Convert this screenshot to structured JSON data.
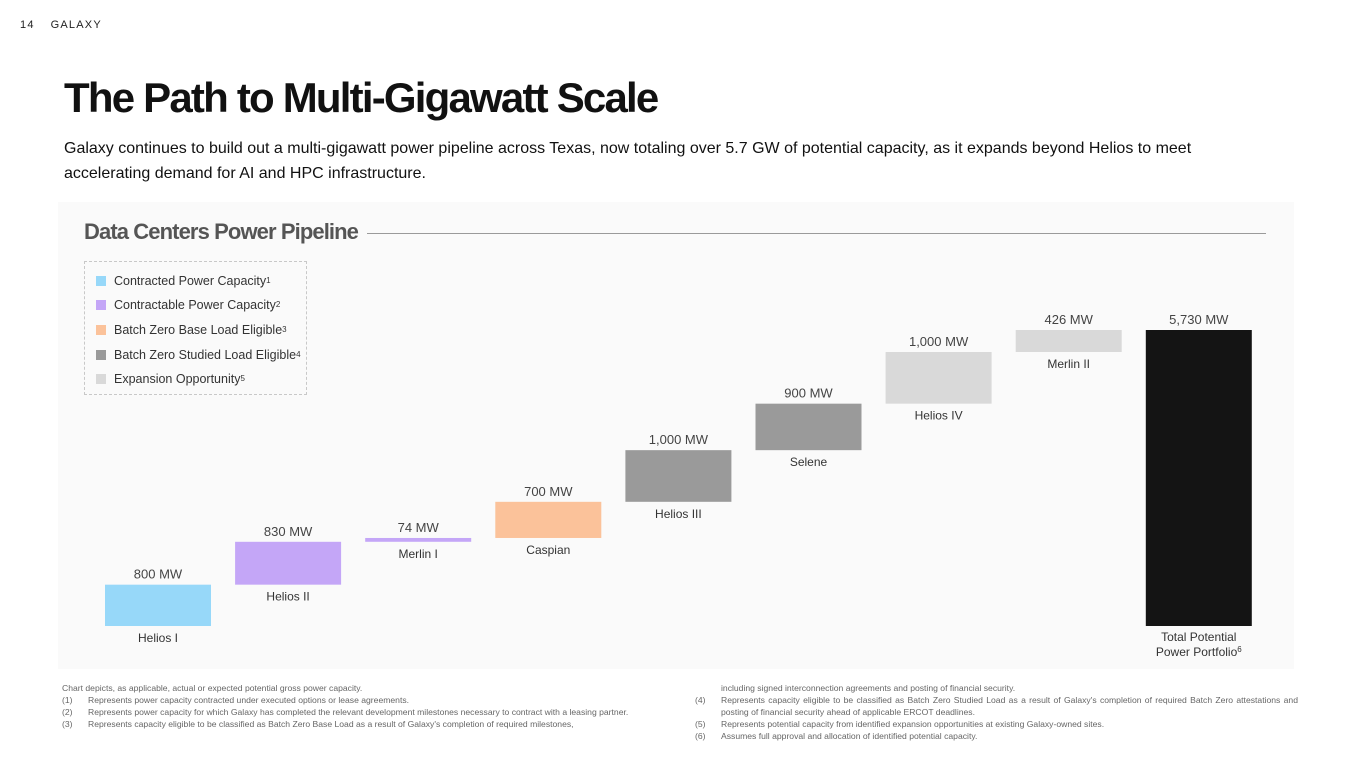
{
  "header": {
    "page_number": "14",
    "brand": "GALAXY"
  },
  "title": "The Path to Multi-Gigawatt Scale",
  "subtitle": "Galaxy continues to build out a multi-gigawatt power pipeline across Texas, now totaling over 5.7 GW of potential capacity, as it expands beyond Helios to meet accelerating demand for AI and HPC infrastructure.",
  "panel": {
    "title": "Data Centers Power Pipeline"
  },
  "legend": [
    {
      "label": "Contracted Power Capacity",
      "sup": "1",
      "color": "#97d8f9"
    },
    {
      "label": "Contractable Power Capacity",
      "sup": "2",
      "color": "#c4a6f7"
    },
    {
      "label": "Batch Zero Base Load Eligible",
      "sup": "3",
      "color": "#fbc29a"
    },
    {
      "label": "Batch Zero Studied Load Eligible",
      "sup": "4",
      "color": "#9a9a9a"
    },
    {
      "label": "Expansion Opportunity",
      "sup": "5",
      "color": "#d9d9d9"
    }
  ],
  "chart_data": {
    "type": "bar",
    "subtype": "waterfall",
    "title": "Data Centers Power Pipeline",
    "unit": "MW",
    "categories": [
      "Helios I",
      "Helios II",
      "Merlin I",
      "Caspian",
      "Helios III",
      "Selene",
      "Helios IV",
      "Merlin II",
      "Total Potential Power Portfolio"
    ],
    "values": [
      800,
      830,
      74,
      700,
      1000,
      900,
      1000,
      426,
      5730
    ],
    "value_labels": [
      "800 MW",
      "830 MW",
      "74 MW",
      "700 MW",
      "1,000 MW",
      "900 MW",
      "1,000 MW",
      "426 MW",
      "5,730 MW"
    ],
    "category_types": [
      "Contracted Power Capacity",
      "Contractable Power Capacity",
      "Contractable Power Capacity",
      "Batch Zero Base Load Eligible",
      "Batch Zero Studied Load Eligible",
      "Batch Zero Studied Load Eligible",
      "Expansion Opportunity",
      "Expansion Opportunity",
      "total"
    ],
    "colors": [
      "#97d8f9",
      "#c4a6f7",
      "#c4a6f7",
      "#fbc29a",
      "#9a9a9a",
      "#9a9a9a",
      "#d9d9d9",
      "#d9d9d9",
      "#141414"
    ],
    "total_label_lines": [
      "Total Potential",
      "Power Portfolio"
    ],
    "total_label_sup": "6",
    "ylim": [
      0,
      5730
    ],
    "grid": false,
    "legend_position": "top-left"
  },
  "footnotes": {
    "intro": "Chart depicts, as applicable, actual or expected potential gross power capacity.",
    "left": [
      {
        "num": "(1)",
        "text": "Represents power capacity contracted under executed options or lease agreements."
      },
      {
        "num": "(2)",
        "text": "Represents power capacity for which Galaxy has completed the relevant development milestones necessary to contract with a leasing partner."
      },
      {
        "num": "(3)",
        "text": "Represents capacity eligible to be classified as Batch Zero Base Load as a result of Galaxy's completion of required milestones,"
      }
    ],
    "right_continuation": "including signed interconnection agreements and posting of financial security.",
    "right": [
      {
        "num": "(4)",
        "text": "Represents capacity eligible to be classified as Batch Zero Studied Load as a result of Galaxy's completion of required Batch Zero attestations and posting of financial security ahead of applicable ERCOT deadlines."
      },
      {
        "num": "(5)",
        "text": "Represents potential capacity from identified expansion opportunities at existing Galaxy-owned sites."
      },
      {
        "num": "(6)",
        "text": "Assumes full approval and allocation of identified potential capacity."
      }
    ]
  }
}
